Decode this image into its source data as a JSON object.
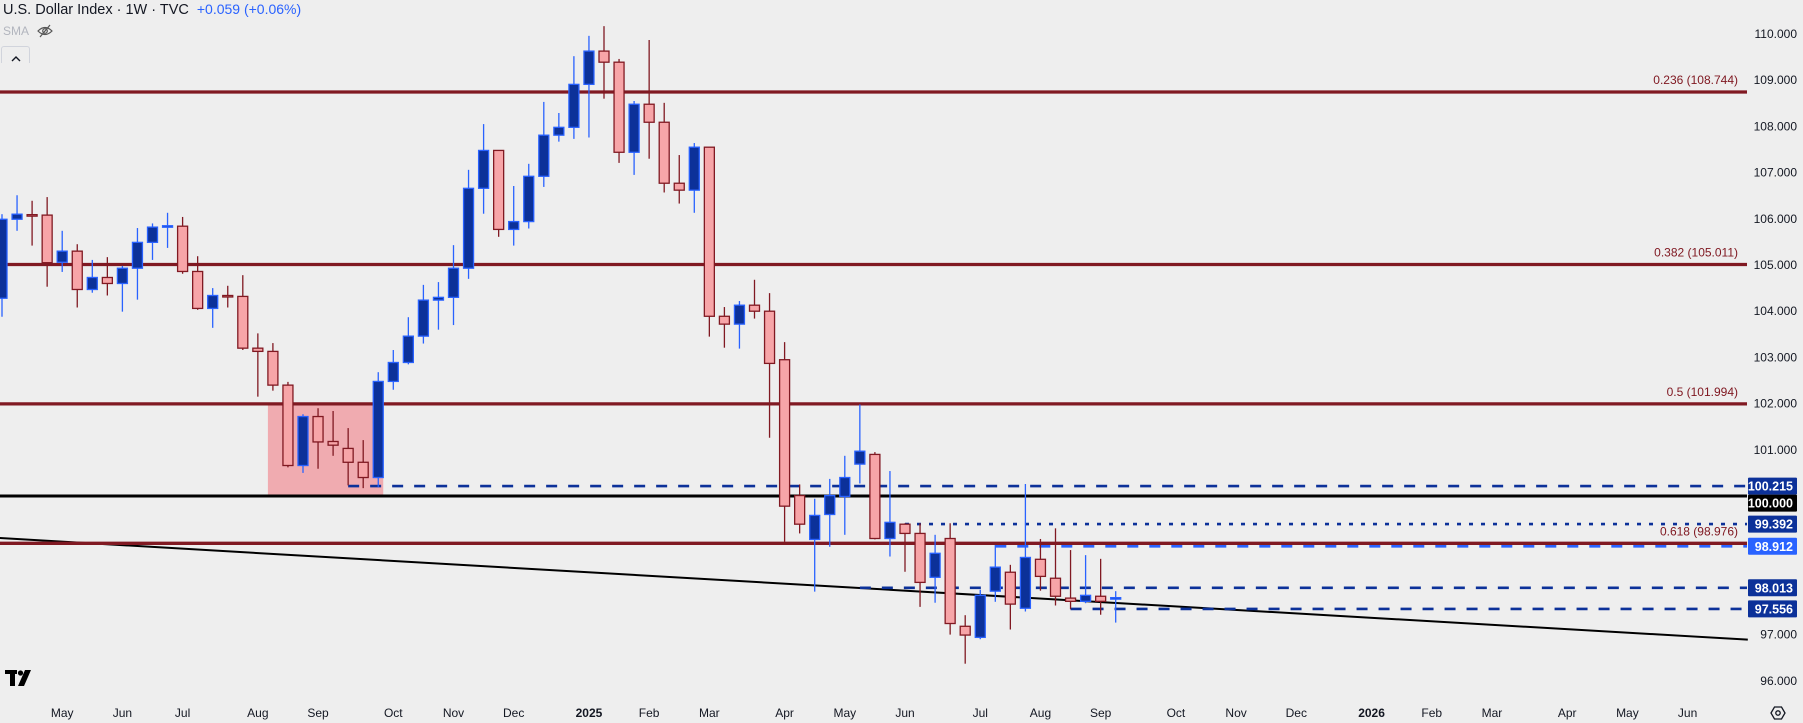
{
  "header": {
    "title": "U.S. Dollar Index · 1W · TVC",
    "change": "+0.059 (+0.06%)",
    "indicator": "SMA",
    "indicator_visibility_icon": "eye-off-icon",
    "collapse_icon": "chevron-up-icon"
  },
  "colors": {
    "background": "#eeeeee",
    "up_fill": "#0c3199",
    "up_border": "#2962ff",
    "down_fill": "#f7a5a8",
    "down_border": "#801922",
    "fib_line": "#801922",
    "level_dark_blue": "#0c3199",
    "level_light_blue": "#2962ff",
    "zone_fill": "#f0abb0",
    "trendline": "#000000"
  },
  "chart_data": {
    "type": "candlestick",
    "symbol": "U.S. Dollar Index",
    "interval": "1W",
    "y_range": [
      95.6,
      110.1
    ],
    "price_ticks": [
      "110.000",
      "109.000",
      "108.000",
      "107.000",
      "106.000",
      "105.000",
      "104.000",
      "103.000",
      "102.000",
      "101.000",
      "97.000",
      "96.000"
    ],
    "time_ticks": [
      {
        "label": "May",
        "date": "2024-05-06"
      },
      {
        "label": "Jun",
        "date": "2024-06-03"
      },
      {
        "label": "Jul",
        "date": "2024-07-01"
      },
      {
        "label": "Aug",
        "date": "2024-08-05"
      },
      {
        "label": "Sep",
        "date": "2024-09-02"
      },
      {
        "label": "Oct",
        "date": "2024-10-07"
      },
      {
        "label": "Nov",
        "date": "2024-11-04"
      },
      {
        "label": "Dec",
        "date": "2024-12-02"
      },
      {
        "label": "2025",
        "date": "2025-01-06",
        "bold": true
      },
      {
        "label": "Feb",
        "date": "2025-02-03"
      },
      {
        "label": "Mar",
        "date": "2025-03-03"
      },
      {
        "label": "Apr",
        "date": "2025-04-07"
      },
      {
        "label": "May",
        "date": "2025-05-05"
      },
      {
        "label": "Jun",
        "date": "2025-06-02"
      },
      {
        "label": "Jul",
        "date": "2025-07-07"
      },
      {
        "label": "Aug",
        "date": "2025-08-04"
      },
      {
        "label": "Sep",
        "date": "2025-09-01"
      },
      {
        "label": "Oct",
        "date": "2025-10-06"
      },
      {
        "label": "Nov",
        "date": "2025-11-03"
      },
      {
        "label": "Dec",
        "date": "2025-12-01"
      },
      {
        "label": "2026",
        "date": "2026-01-05",
        "bold": true
      },
      {
        "label": "Feb",
        "date": "2026-02-02"
      },
      {
        "label": "Mar",
        "date": "2026-03-02"
      },
      {
        "label": "Apr",
        "date": "2026-04-06"
      },
      {
        "label": "May",
        "date": "2026-05-04"
      },
      {
        "label": "Jun",
        "date": "2026-06-01"
      }
    ],
    "first_bar_date": "2024-04-08",
    "ohlc": [
      [
        104.28,
        106.1,
        103.88,
        105.99
      ],
      [
        105.99,
        106.51,
        105.74,
        106.1
      ],
      [
        106.09,
        106.39,
        105.42,
        106.07
      ],
      [
        106.08,
        106.47,
        104.53,
        105.05
      ],
      [
        105.06,
        105.74,
        104.85,
        105.3
      ],
      [
        105.3,
        105.45,
        104.08,
        104.47
      ],
      [
        104.47,
        105.11,
        104.4,
        104.73
      ],
      [
        104.73,
        105.17,
        104.34,
        104.6
      ],
      [
        104.6,
        104.98,
        103.99,
        104.93
      ],
      [
        104.93,
        105.8,
        104.25,
        105.49
      ],
      [
        105.49,
        105.9,
        105.11,
        105.82
      ],
      [
        105.84,
        106.13,
        105.37,
        105.85
      ],
      [
        105.84,
        106.04,
        104.81,
        104.86
      ],
      [
        104.86,
        105.19,
        104.03,
        104.06
      ],
      [
        104.06,
        104.5,
        103.64,
        104.34
      ],
      [
        104.34,
        104.55,
        104.08,
        104.32
      ],
      [
        104.32,
        104.78,
        103.16,
        103.2
      ],
      [
        103.2,
        103.52,
        102.15,
        103.13
      ],
      [
        103.13,
        103.31,
        102.28,
        102.4
      ],
      [
        102.4,
        102.47,
        100.62,
        100.66
      ],
      [
        100.66,
        101.77,
        100.5,
        101.72
      ],
      [
        101.72,
        101.9,
        100.59,
        101.17
      ],
      [
        101.18,
        101.84,
        100.87,
        101.1
      ],
      [
        101.03,
        101.47,
        100.23,
        100.73
      ],
      [
        100.73,
        101.21,
        100.17,
        100.4
      ],
      [
        100.4,
        102.68,
        100.19,
        102.48
      ],
      [
        102.48,
        103.16,
        102.3,
        102.89
      ],
      [
        102.89,
        103.87,
        102.85,
        103.46
      ],
      [
        103.46,
        104.57,
        103.3,
        104.24
      ],
      [
        104.24,
        104.63,
        103.6,
        104.3
      ],
      [
        104.3,
        105.43,
        103.7,
        104.93
      ],
      [
        104.93,
        107.06,
        104.7,
        106.66
      ],
      [
        106.66,
        108.05,
        106.11,
        107.48
      ],
      [
        107.48,
        107.48,
        105.61,
        105.77
      ],
      [
        105.77,
        106.71,
        105.42,
        105.94
      ],
      [
        105.94,
        107.19,
        105.79,
        106.92
      ],
      [
        106.92,
        108.53,
        106.69,
        107.81
      ],
      [
        107.81,
        108.29,
        107.67,
        107.98
      ],
      [
        107.98,
        109.52,
        107.73,
        108.91
      ],
      [
        108.91,
        109.96,
        107.76,
        109.63
      ],
      [
        109.63,
        110.17,
        108.6,
        109.39
      ],
      [
        109.39,
        109.46,
        107.21,
        107.44
      ],
      [
        107.44,
        108.55,
        106.95,
        108.48
      ],
      [
        108.48,
        109.87,
        107.3,
        108.09
      ],
      [
        108.09,
        108.51,
        106.57,
        106.77
      ],
      [
        106.77,
        107.38,
        106.33,
        106.62
      ],
      [
        106.62,
        107.64,
        106.13,
        107.55
      ],
      [
        107.55,
        107.55,
        103.45,
        103.89
      ],
      [
        103.89,
        104.09,
        103.21,
        103.72
      ],
      [
        103.72,
        104.22,
        103.19,
        104.13
      ],
      [
        104.13,
        104.68,
        103.84,
        104.0
      ],
      [
        104.0,
        104.39,
        101.26,
        102.87
      ],
      [
        102.95,
        103.33,
        99.01,
        99.78
      ],
      [
        100.01,
        100.25,
        99.19,
        99.39
      ],
      [
        99.06,
        99.94,
        97.93,
        99.58
      ],
      [
        99.6,
        100.37,
        98.9,
        100.01
      ],
      [
        99.99,
        100.87,
        99.16,
        100.4
      ],
      [
        100.69,
        101.98,
        100.27,
        100.97
      ],
      [
        100.9,
        100.95,
        99.06,
        99.08
      ],
      [
        99.08,
        100.54,
        98.69,
        99.43
      ],
      [
        99.39,
        99.41,
        98.36,
        99.19
      ],
      [
        99.19,
        99.41,
        97.6,
        98.13
      ],
      [
        98.24,
        99.16,
        97.69,
        98.76
      ],
      [
        99.08,
        99.41,
        97.0,
        97.24
      ],
      [
        97.18,
        97.42,
        96.37,
        96.99
      ],
      [
        96.94,
        97.97,
        96.9,
        97.85
      ],
      [
        97.94,
        98.94,
        97.71,
        98.46
      ],
      [
        98.35,
        98.51,
        97.11,
        97.66
      ],
      [
        97.57,
        100.26,
        97.5,
        98.67
      ],
      [
        98.63,
        99.07,
        97.95,
        98.26
      ],
      [
        98.22,
        99.3,
        97.63,
        97.83
      ],
      [
        97.79,
        98.83,
        97.55,
        97.72
      ],
      [
        97.72,
        98.72,
        97.68,
        97.85
      ],
      [
        97.83,
        98.64,
        97.43,
        97.72
      ],
      [
        97.78,
        97.94,
        97.26,
        97.8
      ]
    ],
    "fib_levels": [
      {
        "label": "0.236 (108.744)",
        "value": 108.744
      },
      {
        "label": "0.382 (105.011)",
        "value": 105.011
      },
      {
        "label": "0.5 (101.994)",
        "value": 101.994
      },
      {
        "label": "0.618 (98.976)",
        "value": 98.976
      }
    ],
    "horizontal_levels": [
      {
        "label": "100.215",
        "value": 100.215,
        "style": "dashed",
        "color": "dark-blue",
        "start_date": "2024-09-16"
      },
      {
        "label": "100.000",
        "value": 100.0,
        "style": "solid",
        "color": "black",
        "start_date": "2024-04-01"
      },
      {
        "label": "99.392",
        "value": 99.392,
        "style": "dotted",
        "color": "dark-blue",
        "start_date": "2025-06-02"
      },
      {
        "label": "98.912",
        "value": 98.912,
        "style": "dashed",
        "color": "light-blue",
        "start_date": "2025-07-14"
      },
      {
        "label": "98.013",
        "value": 98.013,
        "style": "dashed",
        "color": "dark-blue",
        "start_date": "2025-05-12"
      },
      {
        "label": "97.556",
        "value": 97.556,
        "style": "dashed",
        "color": "dark-blue",
        "start_date": "2025-08-18"
      }
    ],
    "trendline": [
      {
        "date": "2024-04-07",
        "value": 99.09
      },
      {
        "date": "2026-06-29",
        "value": 96.89
      }
    ],
    "zone": {
      "start_date": "2024-08-12",
      "end_date": "2024-09-30",
      "low": 100.0,
      "high": 102.0
    }
  }
}
